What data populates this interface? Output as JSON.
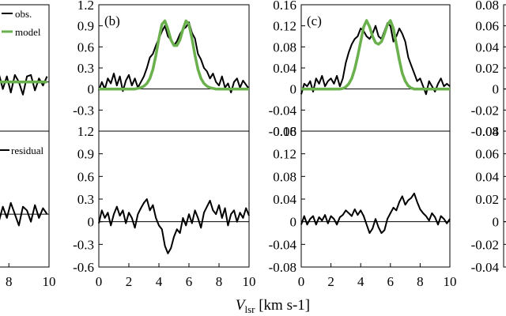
{
  "chart_data": {
    "type": "line",
    "x_label": {
      "prefix": "V",
      "subscript": "lsr",
      "unit": " [km s-1]"
    },
    "legend": {
      "obs": "obs.",
      "model": "model",
      "residual": "residual"
    },
    "colors": {
      "obs": "#000000",
      "model": "#6ab04c",
      "axis": "#000000"
    },
    "panels": [
      {
        "id": "a",
        "label": "",
        "xlim": [
          0,
          10
        ],
        "x_ticks": [
          8,
          10
        ],
        "top": {
          "ylim": [
            -0.6,
            1.2
          ],
          "y_ticks": [],
          "baseline": 0.1
        },
        "bottom": {
          "ylim": [
            -0.6,
            1.2
          ],
          "y_ticks": [],
          "baseline": 0.1
        },
        "obs_x": [
          6.5,
          6.7,
          6.9,
          7.1,
          7.3,
          7.5,
          7.7,
          7.9,
          8.1,
          8.3,
          8.5,
          8.7,
          8.9,
          9.1,
          9.3,
          9.5,
          9.7,
          9.9
        ],
        "obs_top": [
          0.18,
          0.05,
          0.2,
          -0.05,
          0.15,
          0.22,
          0.0,
          0.18,
          -0.05,
          0.2,
          0.1,
          -0.08,
          0.18,
          0.2,
          -0.02,
          0.15,
          0.05,
          0.18
        ],
        "model_top": [
          0.35,
          0.22,
          0.15,
          0.12,
          0.1,
          0.1,
          0.1,
          0.1,
          0.1,
          0.1,
          0.1,
          0.1,
          0.1,
          0.1,
          0.1,
          0.1,
          0.1,
          0.1
        ],
        "obs_bottom": [
          -0.1,
          0.05,
          -0.15,
          0.2,
          0.1,
          0.0,
          0.2,
          0.05,
          0.25,
          0.1,
          -0.05,
          0.2,
          0.15,
          0.0,
          0.22,
          0.05,
          0.18,
          0.1
        ]
      },
      {
        "id": "b",
        "label": "(b)",
        "xlim": [
          0,
          10
        ],
        "x_ticks": [
          0,
          2,
          4,
          6,
          8,
          10
        ],
        "top": {
          "ylim": [
            -0.6,
            1.2
          ],
          "y_ticks": [
            -0.3,
            0,
            0.3,
            0.6,
            0.9,
            1.2
          ],
          "baseline": 0
        },
        "bottom": {
          "ylim": [
            -0.6,
            1.2
          ],
          "y_ticks": [
            -0.6,
            -0.3,
            0,
            0.3,
            0.6,
            0.9,
            1.2
          ],
          "baseline": 0
        },
        "obs_x": [
          0.0,
          0.2,
          0.4,
          0.6,
          0.8,
          1.0,
          1.2,
          1.4,
          1.6,
          1.8,
          2.0,
          2.2,
          2.4,
          2.6,
          2.8,
          3.0,
          3.2,
          3.4,
          3.6,
          3.8,
          4.0,
          4.2,
          4.4,
          4.6,
          4.8,
          5.0,
          5.2,
          5.4,
          5.6,
          5.8,
          6.0,
          6.2,
          6.4,
          6.6,
          6.8,
          7.0,
          7.2,
          7.4,
          7.6,
          7.8,
          8.0,
          8.2,
          8.4,
          8.6,
          8.8,
          9.0,
          9.2,
          9.4,
          9.6,
          9.8,
          10.0
        ],
        "obs_top": [
          -0.02,
          0.1,
          0.0,
          0.15,
          0.08,
          0.22,
          0.05,
          0.18,
          -0.03,
          0.12,
          0.2,
          0.05,
          0.15,
          0.02,
          0.1,
          0.18,
          0.3,
          0.45,
          0.5,
          0.62,
          0.72,
          0.82,
          0.9,
          0.75,
          0.7,
          0.62,
          0.68,
          0.78,
          0.85,
          0.88,
          0.95,
          0.8,
          0.72,
          0.5,
          0.42,
          0.3,
          0.25,
          0.15,
          0.22,
          0.1,
          0.05,
          0.18,
          0.02,
          0.08,
          -0.05,
          0.1,
          0.15,
          0.02,
          0.12,
          0.06,
          0.0
        ],
        "model_top": [
          0.0,
          0.0,
          0.0,
          0.0,
          0.0,
          0.0,
          0.0,
          0.0,
          0.0,
          0.0,
          0.0,
          0.0,
          0.0,
          0.01,
          0.02,
          0.04,
          0.08,
          0.15,
          0.28,
          0.48,
          0.72,
          0.92,
          0.97,
          0.85,
          0.7,
          0.62,
          0.62,
          0.7,
          0.85,
          0.97,
          0.92,
          0.72,
          0.48,
          0.28,
          0.15,
          0.08,
          0.04,
          0.02,
          0.01,
          0.0,
          0.0,
          0.0,
          0.0,
          0.0,
          0.0,
          0.0,
          0.0,
          0.0,
          0.0,
          0.0,
          0.0
        ],
        "obs_bottom": [
          -0.02,
          0.15,
          0.05,
          0.12,
          -0.05,
          0.1,
          0.2,
          0.08,
          0.15,
          -0.02,
          0.12,
          0.05,
          -0.08,
          0.1,
          0.18,
          0.25,
          0.3,
          0.15,
          0.22,
          0.05,
          -0.05,
          -0.1,
          -0.32,
          -0.42,
          -0.35,
          -0.2,
          -0.1,
          -0.15,
          0.05,
          -0.05,
          0.1,
          -0.02,
          0.15,
          0.05,
          -0.08,
          0.12,
          0.2,
          0.28,
          0.15,
          0.1,
          0.22,
          0.05,
          0.18,
          -0.05,
          0.1,
          0.15,
          0.0,
          0.12,
          0.05,
          0.18,
          0.08
        ]
      },
      {
        "id": "c",
        "label": "(c)",
        "xlim": [
          0,
          10
        ],
        "x_ticks": [
          0,
          2,
          4,
          6,
          8,
          10
        ],
        "top": {
          "ylim": [
            -0.08,
            0.16
          ],
          "y_ticks": [
            -0.08,
            -0.04,
            0,
            0.04,
            0.08,
            0.12,
            0.16
          ],
          "baseline": 0
        },
        "bottom": {
          "ylim": [
            -0.08,
            0.16
          ],
          "y_ticks": [
            -0.08,
            -0.04,
            0,
            0.04,
            0.08,
            0.12,
            0.16
          ],
          "baseline": 0
        },
        "obs_x": [
          0.0,
          0.2,
          0.4,
          0.6,
          0.8,
          1.0,
          1.2,
          1.4,
          1.6,
          1.8,
          2.0,
          2.2,
          2.4,
          2.6,
          2.8,
          3.0,
          3.2,
          3.4,
          3.6,
          3.8,
          4.0,
          4.2,
          4.4,
          4.6,
          4.8,
          5.0,
          5.2,
          5.4,
          5.6,
          5.8,
          6.0,
          6.2,
          6.4,
          6.6,
          6.8,
          7.0,
          7.2,
          7.4,
          7.6,
          7.8,
          8.0,
          8.2,
          8.4,
          8.6,
          8.8,
          9.0,
          9.2,
          9.4,
          9.6,
          9.8,
          10.0
        ],
        "obs_top": [
          -0.01,
          0.01,
          0.005,
          0.015,
          -0.005,
          0.02,
          0.01,
          0.025,
          0.005,
          0.015,
          0.02,
          0.01,
          0.025,
          0.005,
          0.02,
          0.05,
          0.07,
          0.085,
          0.095,
          0.1,
          0.115,
          0.11,
          0.1,
          0.095,
          0.105,
          0.12,
          0.1,
          0.095,
          0.11,
          0.125,
          0.12,
          0.09,
          0.1,
          0.115,
          0.105,
          0.09,
          0.06,
          0.045,
          0.03,
          0.015,
          0.02,
          0.005,
          -0.01,
          0.015,
          0.005,
          -0.005,
          0.01,
          0.02,
          0.005,
          0.01,
          0.005
        ],
        "model_top": [
          0.0,
          0.0,
          0.0,
          0.0,
          0.0,
          0.0,
          0.0,
          0.0,
          0.0,
          0.0,
          0.0,
          0.0,
          0.0,
          0.0,
          0.001,
          0.004,
          0.01,
          0.02,
          0.038,
          0.062,
          0.09,
          0.118,
          0.13,
          0.118,
          0.1,
          0.088,
          0.085,
          0.09,
          0.105,
          0.122,
          0.13,
          0.115,
          0.085,
          0.055,
          0.03,
          0.015,
          0.006,
          0.002,
          0.0,
          0.0,
          0.0,
          0.0,
          0.0,
          0.0,
          0.0,
          0.0,
          0.0,
          0.0,
          0.0,
          0.0,
          0.0
        ],
        "obs_bottom": [
          -0.005,
          0.01,
          -0.005,
          0.005,
          0.01,
          -0.005,
          0.008,
          0.002,
          0.012,
          -0.003,
          0.01,
          0.005,
          -0.005,
          0.008,
          0.012,
          0.02,
          0.015,
          0.01,
          0.022,
          0.012,
          0.02,
          0.01,
          -0.005,
          -0.02,
          -0.012,
          0.005,
          -0.01,
          -0.02,
          -0.015,
          0.005,
          0.015,
          0.025,
          0.02,
          0.035,
          0.045,
          0.03,
          0.038,
          0.042,
          0.05,
          0.035,
          0.022,
          0.015,
          0.01,
          0.002,
          0.015,
          0.008,
          -0.005,
          0.01,
          0.005,
          -0.003,
          0.005
        ]
      },
      {
        "id": "d",
        "label": "",
        "xlim": [
          0,
          10
        ],
        "x_ticks": [],
        "top": {
          "ylim": [
            -0.04,
            0.08
          ],
          "y_ticks": [
            -0.04,
            -0.02,
            0,
            0.02,
            0.04,
            0.06,
            0.08
          ],
          "baseline": 0
        },
        "bottom": {
          "ylim": [
            -0.04,
            0.08
          ],
          "y_ticks": [
            -0.04,
            -0.02,
            0,
            0.02,
            0.04,
            0.06,
            0.08
          ],
          "baseline": 0
        },
        "obs_x": [],
        "obs_top": [],
        "model_top": [],
        "obs_bottom": []
      }
    ]
  }
}
